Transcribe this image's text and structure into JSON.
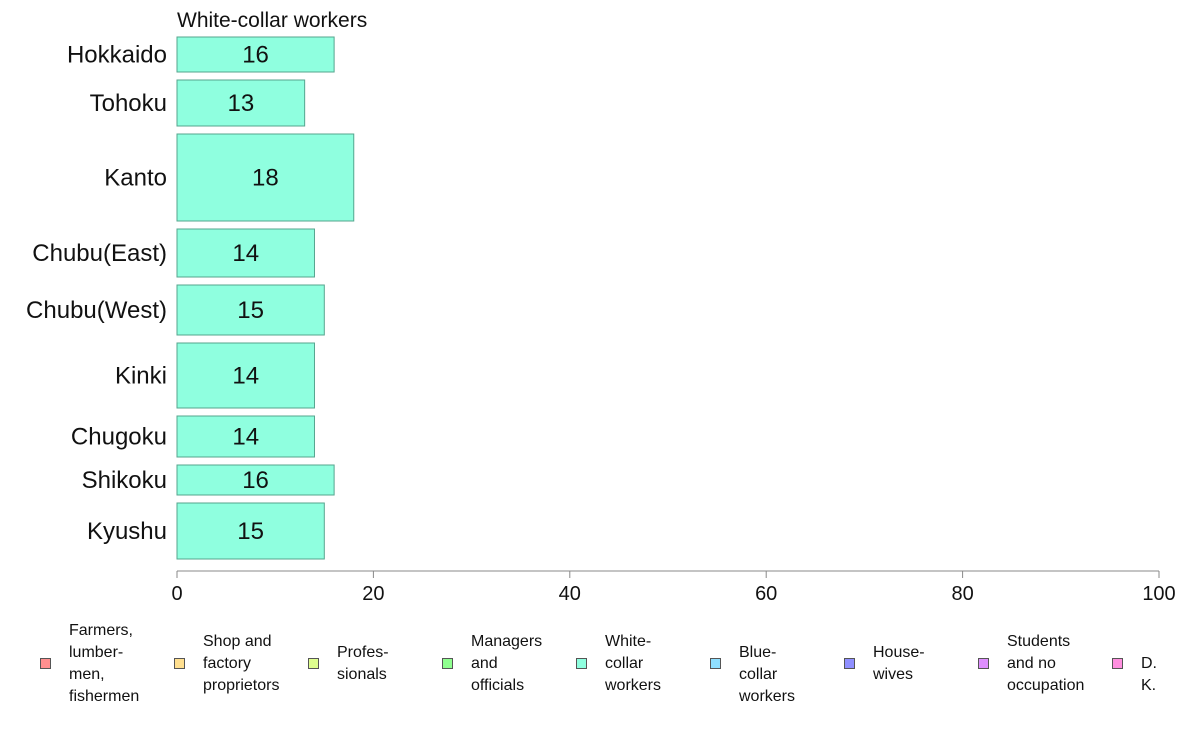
{
  "chart_data": {
    "type": "bar",
    "orientation": "horizontal",
    "title": "White-collar workers",
    "categories": [
      "Hokkaido",
      "Tohoku",
      "Kanto",
      "Chubu(East)",
      "Chubu(West)",
      "Kinki",
      "Chugoku",
      "Shikoku",
      "Kyushu"
    ],
    "values": [
      16,
      13,
      18,
      14,
      15,
      14,
      14,
      16,
      15
    ],
    "data_labels": [
      "16",
      "13",
      "18",
      "14",
      "15",
      "14",
      "14",
      "16",
      "15"
    ],
    "bar_color": "#8fffdf",
    "xlim": [
      0,
      100
    ],
    "xticks": [
      0,
      20,
      40,
      60,
      80,
      100
    ],
    "xtick_labels": [
      "0",
      "20",
      "40",
      "60",
      "80",
      "100"
    ],
    "grid": false,
    "legend_position": "bottom"
  },
  "legend": {
    "items": [
      {
        "label": "Farmers,\nlumber-\nmen,\nfishermen",
        "color": "#ff8f8f"
      },
      {
        "label": "Shop and\nfactory\nproprietors",
        "color": "#ffdf8f"
      },
      {
        "label": "Profes-\nsionals",
        "color": "#dfff8f"
      },
      {
        "label": "Managers\nand\nofficials",
        "color": "#8fff8f"
      },
      {
        "label": "White-\ncollar\nworkers",
        "color": "#8fffdf"
      },
      {
        "label": "Blue-collar\nworkers",
        "color": "#8fdfff"
      },
      {
        "label": "House-\nwives",
        "color": "#8f8fff"
      },
      {
        "label": "Students\nand no\noccupation",
        "color": "#df8fff"
      },
      {
        "label": "D. K.",
        "color": "#ff8fdf"
      }
    ]
  }
}
